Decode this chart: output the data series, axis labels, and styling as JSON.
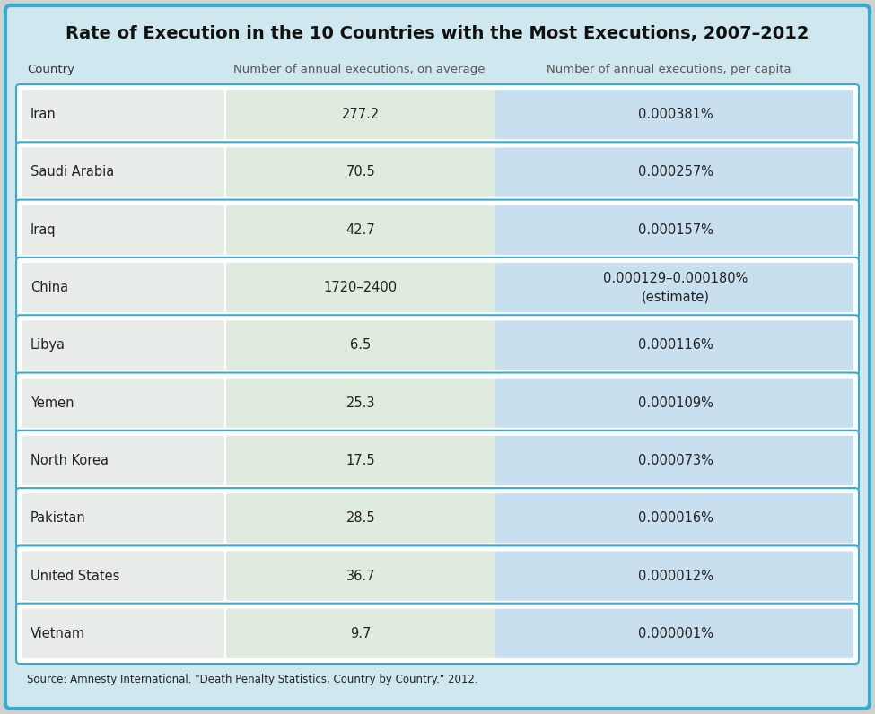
{
  "title": "Rate of Execution in the 10 Countries with the Most Executions, 2007–2012",
  "col1_header": "Country",
  "col2_header": "Number of annual executions, on average",
  "col3_header": "Number of annual executions, per capita",
  "countries": [
    "Iran",
    "Saudi Arabia",
    "Iraq",
    "China",
    "Libya",
    "Yemen",
    "North Korea",
    "Pakistan",
    "United States",
    "Vietnam"
  ],
  "avg_executions": [
    "277.2",
    "70.5",
    "42.7",
    "1720–2400",
    "6.5",
    "25.3",
    "17.5",
    "28.5",
    "36.7",
    "9.7"
  ],
  "per_capita": [
    "0.000381%",
    "0.000257%",
    "0.000157%",
    "0.000129–0.000180%\n(estimate)",
    "0.000116%",
    "0.000109%",
    "0.000073%",
    "0.000016%",
    "0.000012%",
    "0.000001%"
  ],
  "source": "Source: Amnesty International. \"Death Penalty Statistics, Country by Country.\" 2012.",
  "bg_color": "#cfe8f0",
  "outer_border_color": "#3aabcc",
  "col1_bg": "#e8ece8",
  "col2_bg": "#e0ebe0",
  "col3_bg": "#c8dff0",
  "row_border_color": "#3aabcc",
  "title_fontsize": 14,
  "header_fontsize": 9.5,
  "cell_fontsize": 10.5,
  "source_fontsize": 8.5,
  "fig_width": 9.75,
  "fig_height": 7.96,
  "dpi": 100
}
